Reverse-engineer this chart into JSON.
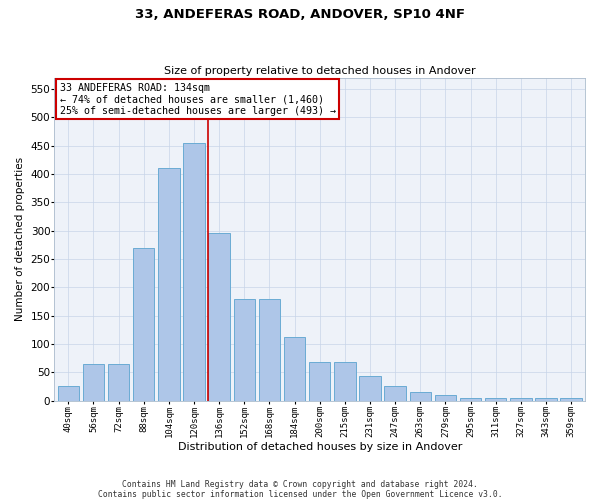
{
  "title": "33, ANDEFERAS ROAD, ANDOVER, SP10 4NF",
  "subtitle": "Size of property relative to detached houses in Andover",
  "xlabel": "Distribution of detached houses by size in Andover",
  "ylabel": "Number of detached properties",
  "categories": [
    "40sqm",
    "56sqm",
    "72sqm",
    "88sqm",
    "104sqm",
    "120sqm",
    "136sqm",
    "152sqm",
    "168sqm",
    "184sqm",
    "200sqm",
    "215sqm",
    "231sqm",
    "247sqm",
    "263sqm",
    "279sqm",
    "295sqm",
    "311sqm",
    "327sqm",
    "343sqm",
    "359sqm"
  ],
  "values": [
    25,
    65,
    65,
    270,
    410,
    455,
    295,
    180,
    180,
    113,
    68,
    68,
    43,
    25,
    15,
    10,
    5,
    5,
    5,
    5,
    5
  ],
  "bar_color": "#aec6e8",
  "bar_edge_color": "#6aabd4",
  "property_line_index": 6,
  "annotation_line1": "33 ANDEFERAS ROAD: 134sqm",
  "annotation_line2": "← 74% of detached houses are smaller (1,460)",
  "annotation_line3": "25% of semi-detached houses are larger (493) →",
  "annotation_box_facecolor": "#ffffff",
  "annotation_box_edgecolor": "#cc0000",
  "vline_color": "#cc0000",
  "ylim": [
    0,
    570
  ],
  "yticks": [
    0,
    50,
    100,
    150,
    200,
    250,
    300,
    350,
    400,
    450,
    500,
    550
  ],
  "background_color": "#eef2f9",
  "footer_line1": "Contains HM Land Registry data © Crown copyright and database right 2024.",
  "footer_line2": "Contains public sector information licensed under the Open Government Licence v3.0."
}
